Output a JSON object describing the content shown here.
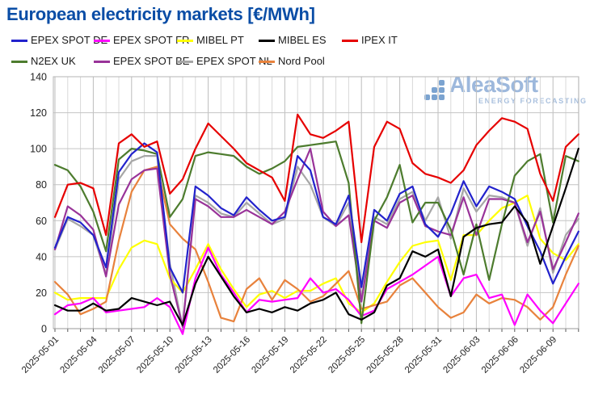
{
  "title": "European electricity markets [€/MWh]",
  "watermark": {
    "brand": "AleaSoft",
    "tagline": "ENERGY FORECASTING"
  },
  "colors": {
    "title": "#0a4da6",
    "grid_major": "#c4c4c4",
    "grid_day": "#d9d9d9",
    "grid_3day": "#bdbdbd",
    "axis_text": "#222222",
    "watermark_blue": "#9db8dc"
  },
  "chart_data": {
    "type": "line",
    "title": "European electricity markets [€/MWh]",
    "xlabel": "",
    "ylabel": "",
    "ylim": [
      0,
      140
    ],
    "y_ticks": [
      0,
      20,
      40,
      60,
      80,
      100,
      120,
      140
    ],
    "grid": true,
    "legend_position": "top",
    "x": [
      "2025-05-01",
      "2025-05-02",
      "2025-05-03",
      "2025-05-04",
      "2025-05-05",
      "2025-05-06",
      "2025-05-07",
      "2025-05-08",
      "2025-05-09",
      "2025-05-10",
      "2025-05-11",
      "2025-05-12",
      "2025-05-13",
      "2025-05-14",
      "2025-05-15",
      "2025-05-16",
      "2025-05-17",
      "2025-05-18",
      "2025-05-19",
      "2025-05-20",
      "2025-05-21",
      "2025-05-22",
      "2025-05-23",
      "2025-05-24",
      "2025-05-25",
      "2025-05-26",
      "2025-05-27",
      "2025-05-28",
      "2025-05-29",
      "2025-05-30",
      "2025-05-31",
      "2025-06-01",
      "2025-06-02",
      "2025-06-03",
      "2025-06-04",
      "2025-06-05",
      "2025-06-06",
      "2025-06-07",
      "2025-06-08",
      "2025-06-09",
      "2025-06-10",
      "2025-06-11"
    ],
    "x_tick_labels": [
      "2025-05-01",
      "2025-05-04",
      "2025-05-07",
      "2025-05-10",
      "2025-05-13",
      "2025-05-16",
      "2025-05-19",
      "2025-05-22",
      "2025-05-25",
      "2025-05-28",
      "2025-05-31",
      "2025-06-03",
      "2025-06-06",
      "2025-06-09"
    ],
    "series": [
      {
        "name": "EPEX SPOT DE",
        "color": "#2222cc",
        "values": [
          45,
          62,
          59,
          52,
          34,
          87,
          97,
          103,
          98,
          34,
          20,
          79,
          74,
          67,
          63,
          73,
          66,
          60,
          62,
          96,
          88,
          62,
          58,
          74,
          23,
          66,
          60,
          75,
          79,
          58,
          51,
          64,
          82,
          68,
          79,
          76,
          72,
          57,
          43,
          25,
          40,
          54
        ]
      },
      {
        "name": "EPEX SPOT FR",
        "color": "#ff00ff",
        "values": [
          8,
          13,
          14,
          17,
          9,
          10,
          11,
          12,
          17,
          12,
          -3,
          28,
          45,
          30,
          20,
          9,
          16,
          15,
          16,
          17,
          28,
          20,
          22,
          16,
          7,
          10,
          22,
          26,
          30,
          35,
          40,
          18,
          28,
          30,
          17,
          19,
          2,
          19,
          10,
          3,
          14,
          25
        ]
      },
      {
        "name": "MIBEL PT",
        "color": "#ffff00",
        "values": [
          20,
          16,
          17,
          17,
          17,
          33,
          45,
          49,
          47,
          28,
          20,
          33,
          47,
          33,
          22,
          12,
          19,
          21,
          17,
          21,
          21,
          25,
          28,
          14,
          9,
          14,
          26,
          37,
          46,
          48,
          49,
          27,
          52,
          52,
          60,
          67,
          70,
          74,
          50,
          42,
          38,
          47
        ]
      },
      {
        "name": "MIBEL ES",
        "color": "#000000",
        "values": [
          13,
          10,
          10,
          14,
          10,
          11,
          17,
          15,
          13,
          15,
          2,
          25,
          40,
          29,
          18,
          9,
          11,
          9,
          12,
          10,
          14,
          16,
          20,
          8,
          5,
          9,
          24,
          28,
          43,
          40,
          44,
          18,
          51,
          56,
          58,
          59,
          68,
          59,
          36,
          57,
          78,
          100
        ]
      },
      {
        "name": "IPEX IT",
        "color": "#e60000",
        "values": [
          62,
          80,
          81,
          78,
          52,
          103,
          108,
          101,
          104,
          75,
          83,
          100,
          114,
          107,
          100,
          92,
          88,
          84,
          71,
          119,
          108,
          106,
          110,
          115,
          48,
          101,
          115,
          111,
          92,
          86,
          84,
          81,
          88,
          102,
          110,
          117,
          115,
          111,
          86,
          71,
          101,
          108
        ]
      },
      {
        "name": "N2EX UK",
        "color": "#4d7c2e",
        "values": [
          91,
          88,
          79,
          65,
          43,
          94,
          100,
          99,
          97,
          62,
          72,
          96,
          98,
          97,
          96,
          90,
          86,
          89,
          93,
          101,
          102,
          103,
          104,
          81,
          3,
          60,
          73,
          91,
          59,
          70,
          70,
          55,
          30,
          58,
          27,
          58,
          85,
          93,
          97,
          59,
          96,
          93
        ]
      },
      {
        "name": "EPEX SPOT BE",
        "color": "#993399",
        "values": [
          44,
          68,
          63,
          55,
          29,
          69,
          83,
          88,
          89,
          30,
          1,
          72,
          68,
          62,
          62,
          66,
          62,
          58,
          65,
          83,
          100,
          65,
          57,
          63,
          15,
          60,
          56,
          70,
          74,
          57,
          54,
          52,
          73,
          52,
          72,
          72,
          70,
          48,
          65,
          33,
          48,
          64
        ]
      },
      {
        "name": "EPEX SPOT NL",
        "color": "#a6a6a6",
        "values": [
          44,
          61,
          57,
          52,
          30,
          83,
          93,
          96,
          96,
          36,
          1,
          74,
          70,
          64,
          62,
          70,
          64,
          58,
          61,
          90,
          80,
          62,
          57,
          70,
          16,
          62,
          58,
          72,
          76,
          60,
          73,
          50,
          78,
          65,
          74,
          73,
          70,
          46,
          67,
          31,
          52,
          61
        ]
      },
      {
        "name": "Nord Pool",
        "color": "#e8823c",
        "values": [
          26,
          19,
          8,
          11,
          15,
          49,
          76,
          88,
          90,
          58,
          50,
          44,
          26,
          6,
          4,
          22,
          28,
          16,
          27,
          22,
          15,
          18,
          25,
          32,
          11,
          13,
          15,
          24,
          28,
          20,
          12,
          6,
          9,
          19,
          14,
          17,
          16,
          12,
          5,
          12,
          30,
          46
        ]
      }
    ],
    "draw_order": [
      "EPEX SPOT NL",
      "MIBEL PT",
      "Nord Pool",
      "EPEX SPOT FR",
      "EPEX SPOT BE",
      "N2EX UK",
      "EPEX SPOT DE",
      "IPEX IT",
      "MIBEL ES"
    ]
  }
}
